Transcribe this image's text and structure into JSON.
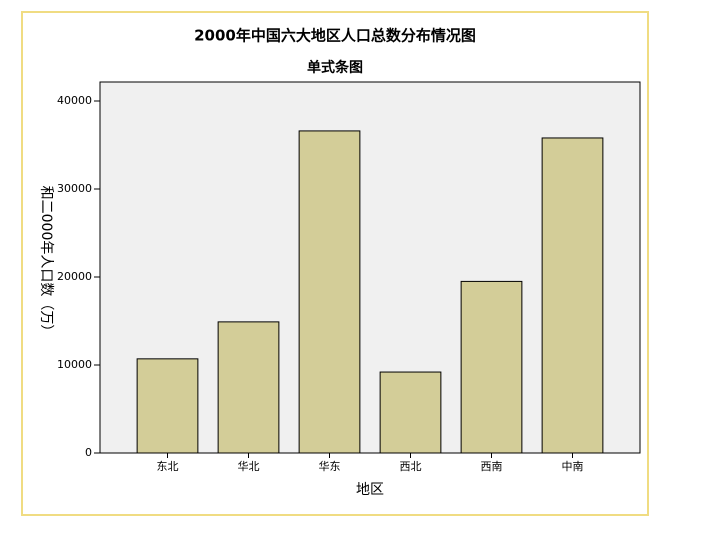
{
  "chart_data": {
    "type": "bar",
    "title": "2000年中国六大地区人口总数分布情况图",
    "subtitle": "单式条图",
    "x_label": "地区",
    "y_label": "和二000年人口数（万）",
    "categories": [
      "东北",
      "华北",
      "华东",
      "西北",
      "西南",
      "中南"
    ],
    "values": [
      10700,
      14900,
      36600,
      9200,
      19500,
      35800
    ],
    "color": "#d3cd98",
    "ylim": [
      0,
      40000
    ],
    "yticks": [
      0,
      10000,
      20000,
      30000,
      40000
    ],
    "grid": false
  }
}
